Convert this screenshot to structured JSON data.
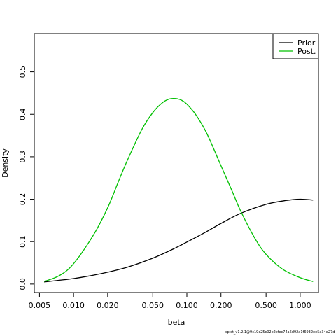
{
  "chart_data": {
    "type": "line",
    "xlabel": "beta",
    "ylabel": "Density",
    "x_scale": "log",
    "xlim": [
      0.0045,
      1.45
    ],
    "ylim": [
      -0.02,
      0.59
    ],
    "x_ticks": [
      {
        "value": 0.005,
        "label": "0.005"
      },
      {
        "value": 0.01,
        "label": "0.010"
      },
      {
        "value": 0.02,
        "label": "0.020"
      },
      {
        "value": 0.05,
        "label": "0.050"
      },
      {
        "value": 0.1,
        "label": "0.100"
      },
      {
        "value": 0.2,
        "label": "0.200"
      },
      {
        "value": 0.5,
        "label": "0.500"
      },
      {
        "value": 1.0,
        "label": "1.000"
      }
    ],
    "y_ticks": [
      {
        "value": 0.0,
        "label": "0.0"
      },
      {
        "value": 0.1,
        "label": "0.1"
      },
      {
        "value": 0.2,
        "label": "0.2"
      },
      {
        "value": 0.3,
        "label": "0.3"
      },
      {
        "value": 0.4,
        "label": "0.4"
      },
      {
        "value": 0.5,
        "label": "0.5"
      }
    ],
    "grid": false,
    "legend_position": "top-right",
    "series": [
      {
        "name": "Prior",
        "color": "#000000",
        "x": [
          0.0055,
          0.0075,
          0.01,
          0.015,
          0.02,
          0.03,
          0.05,
          0.075,
          0.1,
          0.15,
          0.2,
          0.3,
          0.5,
          0.75,
          1.0,
          1.3
        ],
        "y": [
          0.005,
          0.009,
          0.013,
          0.021,
          0.028,
          0.04,
          0.061,
          0.082,
          0.099,
          0.124,
          0.143,
          0.167,
          0.188,
          0.197,
          0.2,
          0.198
        ]
      },
      {
        "name": "Post.",
        "color": "#00c000",
        "x": [
          0.0055,
          0.0075,
          0.01,
          0.015,
          0.02,
          0.025,
          0.03,
          0.04,
          0.05,
          0.06,
          0.07,
          0.08,
          0.09,
          0.1,
          0.12,
          0.15,
          0.2,
          0.25,
          0.3,
          0.4,
          0.5,
          0.7,
          1.0,
          1.3
        ],
        "y": [
          0.006,
          0.02,
          0.048,
          0.116,
          0.18,
          0.243,
          0.293,
          0.364,
          0.404,
          0.426,
          0.436,
          0.437,
          0.433,
          0.424,
          0.399,
          0.355,
          0.279,
          0.22,
          0.171,
          0.107,
          0.07,
          0.035,
          0.015,
          0.006
        ]
      }
    ]
  },
  "footer": "spict_v1.2.1@9c19c25c02e2cfec74a6d92a1f6932ee5a34e27d"
}
